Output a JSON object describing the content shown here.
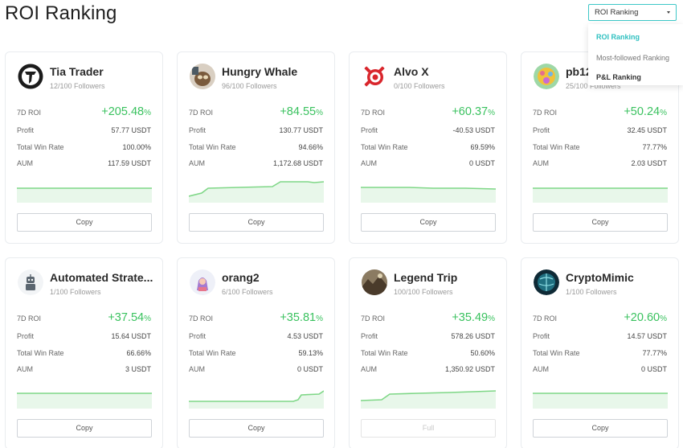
{
  "header": {
    "title": "ROI Ranking"
  },
  "sort": {
    "selected": "ROI Ranking",
    "options": [
      "ROI Ranking",
      "Most-followed Ranking",
      "P&L Ranking"
    ]
  },
  "labels": {
    "roi": "7D ROI",
    "profit": "Profit",
    "win_rate": "Total Win Rate",
    "aum": "AUM"
  },
  "colors": {
    "accent": "#3ec7c7",
    "positive": "#3ac25f",
    "spark_line": "#7fd787",
    "spark_fill": "#e8f7ea"
  },
  "traders": [
    {
      "name": "Tia Trader",
      "followers": "12/100 Followers",
      "roi": "+205.48",
      "pct": "%",
      "profit": "57.77 USDT",
      "win_rate": "100.00%",
      "aum": "117.59 USDT",
      "button": "Copy",
      "button_disabled": false,
      "avatar_icon": "tia-logo-icon"
    },
    {
      "name": "Hungry Whale",
      "followers": "96/100 Followers",
      "roi": "+84.55",
      "pct": "%",
      "profit": "130.77 USDT",
      "win_rate": "94.66%",
      "aum": "1,172.68 USDT",
      "button": "Copy",
      "button_disabled": false,
      "avatar_icon": "cat-photo-icon"
    },
    {
      "name": "Alvo X",
      "followers": "0/100 Followers",
      "roi": "+60.37",
      "pct": "%",
      "profit": "-40.53 USDT",
      "win_rate": "69.59%",
      "aum": "0 USDT",
      "button": "Copy",
      "button_disabled": false,
      "avatar_icon": "target-icon"
    },
    {
      "name": "pb12",
      "followers": "25/100 Followers",
      "roi": "+50.24",
      "pct": "%",
      "profit": "32.45 USDT",
      "win_rate": "77.77%",
      "aum": "2.03 USDT",
      "button": "Copy",
      "button_disabled": false,
      "avatar_icon": "colorful-pattern-icon"
    },
    {
      "name": "Automated Strate...",
      "followers": "1/100 Followers",
      "roi": "+37.54",
      "pct": "%",
      "profit": "15.64 USDT",
      "win_rate": "66.66%",
      "aum": "3 USDT",
      "button": "Copy",
      "button_disabled": false,
      "avatar_icon": "robot-icon"
    },
    {
      "name": "orang2",
      "followers": "6/100 Followers",
      "roi": "+35.81",
      "pct": "%",
      "profit": "4.53 USDT",
      "win_rate": "59.13%",
      "aum": "0 USDT",
      "button": "Copy",
      "button_disabled": false,
      "avatar_icon": "character-icon"
    },
    {
      "name": "Legend Trip",
      "followers": "100/100 Followers",
      "roi": "+35.49",
      "pct": "%",
      "profit": "578.26 USDT",
      "win_rate": "50.60%",
      "aum": "1,350.92 USDT",
      "button": "Full",
      "button_disabled": true,
      "avatar_icon": "landscape-photo-icon"
    },
    {
      "name": "CryptoMimic",
      "followers": "1/100 Followers",
      "roi": "+20.60",
      "pct": "%",
      "profit": "14.57 USDT",
      "win_rate": "77.77%",
      "aum": "0 USDT",
      "button": "Copy",
      "button_disabled": false,
      "avatar_icon": "globe-icon"
    }
  ]
}
